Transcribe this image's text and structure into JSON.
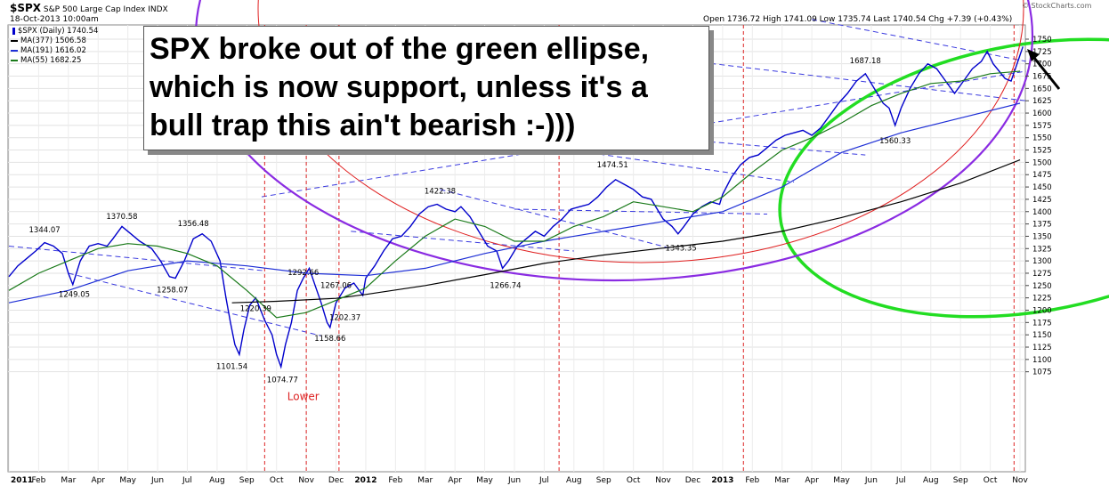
{
  "header": {
    "symbol": "$SPX",
    "name": "S&P 500 Large Cap Index",
    "exchange": "INDX",
    "datetime": "18-Oct-2013 10:00am",
    "watermark": "© StockCharts.com",
    "quote": {
      "open_label": "Open",
      "open": "1736.72",
      "high_label": "High",
      "high": "1741.09",
      "low_label": "Low",
      "low": "1735.74",
      "last_label": "Last",
      "last": "1740.54",
      "chg_label": "Chg",
      "chg": "+7.39 (+0.43%)"
    }
  },
  "legend": [
    {
      "label": "$SPX (Daily) 1740.54",
      "color": "#0000cc",
      "marker": "candle"
    },
    {
      "label": "MA(377) 1506.58",
      "color": "#000000",
      "marker": "line"
    },
    {
      "label": "MA(191) 1616.02",
      "color": "#1e2fd6",
      "marker": "line"
    },
    {
      "label": "MA(55) 1682.25",
      "color": "#1a7a1a",
      "marker": "line"
    }
  ],
  "callout": [
    "SPX broke out of the green ellipse,",
    "which is now support, unless it's a",
    "bull trap this ain't bearish :-)))"
  ],
  "chart_data": {
    "type": "line",
    "x_ticks": [
      "2011",
      "Feb",
      "Mar",
      "Apr",
      "May",
      "Jun",
      "Jul",
      "Aug",
      "Sep",
      "Oct",
      "Nov",
      "Dec",
      "2012",
      "Feb",
      "Mar",
      "Apr",
      "May",
      "Jun",
      "Jul",
      "Aug",
      "Sep",
      "Oct",
      "Nov",
      "Dec",
      "2013",
      "Feb",
      "Mar",
      "Apr",
      "May",
      "Jun",
      "Jul",
      "Aug",
      "Sep",
      "Oct",
      "Nov"
    ],
    "y_ticks": [
      1075,
      1100,
      1125,
      1150,
      1175,
      1200,
      1225,
      1250,
      1275,
      1300,
      1325,
      1350,
      1375,
      1400,
      1425,
      1450,
      1475,
      1500,
      1525,
      1550,
      1575,
      1600,
      1625,
      1650,
      1675,
      1700,
      1725,
      1750
    ],
    "ylim": [
      1060,
      1755
    ],
    "series": [
      {
        "name": "$SPX (Daily)",
        "color": "#0000cc",
        "points": [
          [
            0,
            1268
          ],
          [
            0.3,
            1290
          ],
          [
            0.6,
            1305
          ],
          [
            0.9,
            1320
          ],
          [
            1.2,
            1337
          ],
          [
            1.5,
            1330
          ],
          [
            1.8,
            1315
          ],
          [
            2.0,
            1275
          ],
          [
            2.15,
            1252
          ],
          [
            2.4,
            1300
          ],
          [
            2.7,
            1330
          ],
          [
            3.0,
            1335
          ],
          [
            3.3,
            1330
          ],
          [
            3.5,
            1345
          ],
          [
            3.8,
            1370
          ],
          [
            4.1,
            1355
          ],
          [
            4.4,
            1340
          ],
          [
            4.8,
            1325
          ],
          [
            5.1,
            1300
          ],
          [
            5.4,
            1268
          ],
          [
            5.6,
            1265
          ],
          [
            5.9,
            1300
          ],
          [
            6.2,
            1345
          ],
          [
            6.5,
            1355
          ],
          [
            6.8,
            1340
          ],
          [
            7.1,
            1300
          ],
          [
            7.3,
            1225
          ],
          [
            7.45,
            1175
          ],
          [
            7.6,
            1130
          ],
          [
            7.75,
            1110
          ],
          [
            7.9,
            1160
          ],
          [
            8.1,
            1210
          ],
          [
            8.3,
            1225
          ],
          [
            8.6,
            1180
          ],
          [
            8.85,
            1150
          ],
          [
            9.0,
            1110
          ],
          [
            9.15,
            1085
          ],
          [
            9.3,
            1130
          ],
          [
            9.5,
            1175
          ],
          [
            9.7,
            1240
          ],
          [
            9.9,
            1265
          ],
          [
            10.1,
            1285
          ],
          [
            10.3,
            1250
          ],
          [
            10.5,
            1215
          ],
          [
            10.7,
            1175
          ],
          [
            10.8,
            1165
          ],
          [
            11.0,
            1215
          ],
          [
            11.3,
            1245
          ],
          [
            11.6,
            1255
          ],
          [
            11.9,
            1230
          ],
          [
            12.0,
            1265
          ],
          [
            12.3,
            1290
          ],
          [
            12.6,
            1320
          ],
          [
            12.9,
            1345
          ],
          [
            13.2,
            1350
          ],
          [
            13.5,
            1370
          ],
          [
            13.8,
            1395
          ],
          [
            14.1,
            1410
          ],
          [
            14.4,
            1415
          ],
          [
            14.7,
            1405
          ],
          [
            15.0,
            1400
          ],
          [
            15.2,
            1410
          ],
          [
            15.5,
            1390
          ],
          [
            15.8,
            1360
          ],
          [
            16.1,
            1330
          ],
          [
            16.4,
            1320
          ],
          [
            16.6,
            1285
          ],
          [
            16.8,
            1300
          ],
          [
            17.1,
            1330
          ],
          [
            17.4,
            1345
          ],
          [
            17.7,
            1360
          ],
          [
            18.0,
            1350
          ],
          [
            18.3,
            1370
          ],
          [
            18.6,
            1385
          ],
          [
            18.9,
            1405
          ],
          [
            19.2,
            1410
          ],
          [
            19.5,
            1415
          ],
          [
            19.8,
            1430
          ],
          [
            20.1,
            1450
          ],
          [
            20.4,
            1465
          ],
          [
            20.7,
            1455
          ],
          [
            21.0,
            1445
          ],
          [
            21.3,
            1430
          ],
          [
            21.6,
            1425
          ],
          [
            21.8,
            1405
          ],
          [
            22.0,
            1385
          ],
          [
            22.3,
            1370
          ],
          [
            22.5,
            1355
          ],
          [
            22.7,
            1370
          ],
          [
            23.0,
            1395
          ],
          [
            23.3,
            1410
          ],
          [
            23.6,
            1420
          ],
          [
            23.9,
            1415
          ],
          [
            24.0,
            1435
          ],
          [
            24.3,
            1470
          ],
          [
            24.6,
            1495
          ],
          [
            24.9,
            1510
          ],
          [
            25.2,
            1515
          ],
          [
            25.5,
            1530
          ],
          [
            25.8,
            1545
          ],
          [
            26.1,
            1555
          ],
          [
            26.4,
            1560
          ],
          [
            26.7,
            1565
          ],
          [
            27.0,
            1555
          ],
          [
            27.3,
            1570
          ],
          [
            27.6,
            1595
          ],
          [
            27.9,
            1620
          ],
          [
            28.2,
            1640
          ],
          [
            28.5,
            1665
          ],
          [
            28.8,
            1680
          ],
          [
            29.0,
            1660
          ],
          [
            29.2,
            1640
          ],
          [
            29.4,
            1620
          ],
          [
            29.6,
            1610
          ],
          [
            29.8,
            1575
          ],
          [
            30.0,
            1610
          ],
          [
            30.3,
            1650
          ],
          [
            30.6,
            1680
          ],
          [
            30.9,
            1700
          ],
          [
            31.2,
            1690
          ],
          [
            31.5,
            1665
          ],
          [
            31.8,
            1640
          ],
          [
            32.1,
            1665
          ],
          [
            32.4,
            1690
          ],
          [
            32.7,
            1705
          ],
          [
            32.9,
            1725
          ],
          [
            33.1,
            1700
          ],
          [
            33.3,
            1685
          ],
          [
            33.5,
            1670
          ],
          [
            33.7,
            1665
          ],
          [
            33.9,
            1700
          ],
          [
            34.1,
            1735
          ]
        ]
      },
      {
        "name": "MA(377)",
        "color": "#000000",
        "points": [
          [
            7.5,
            1215
          ],
          [
            9,
            1218
          ],
          [
            11,
            1224
          ],
          [
            12,
            1232
          ],
          [
            14,
            1250
          ],
          [
            16,
            1272
          ],
          [
            18,
            1295
          ],
          [
            20,
            1312
          ],
          [
            22,
            1326
          ],
          [
            24,
            1340
          ],
          [
            26,
            1360
          ],
          [
            28,
            1388
          ],
          [
            30,
            1420
          ],
          [
            32,
            1458
          ],
          [
            34,
            1505
          ]
        ]
      },
      {
        "name": "MA(191)",
        "color": "#1e2fd6",
        "points": [
          [
            0,
            1215
          ],
          [
            2,
            1240
          ],
          [
            4,
            1280
          ],
          [
            6,
            1300
          ],
          [
            8,
            1290
          ],
          [
            10,
            1275
          ],
          [
            12,
            1270
          ],
          [
            14,
            1285
          ],
          [
            16,
            1315
          ],
          [
            18,
            1340
          ],
          [
            20,
            1360
          ],
          [
            22,
            1380
          ],
          [
            24,
            1400
          ],
          [
            26,
            1450
          ],
          [
            28,
            1520
          ],
          [
            30,
            1560
          ],
          [
            32,
            1590
          ],
          [
            34,
            1620
          ]
        ]
      },
      {
        "name": "MA(55)",
        "color": "#1a7a1a",
        "points": [
          [
            0,
            1240
          ],
          [
            1,
            1275
          ],
          [
            2,
            1300
          ],
          [
            3,
            1325
          ],
          [
            4,
            1335
          ],
          [
            5,
            1330
          ],
          [
            6,
            1315
          ],
          [
            7,
            1290
          ],
          [
            8,
            1240
          ],
          [
            9,
            1185
          ],
          [
            10,
            1195
          ],
          [
            11,
            1220
          ],
          [
            12,
            1245
          ],
          [
            13,
            1300
          ],
          [
            14,
            1350
          ],
          [
            15,
            1385
          ],
          [
            16,
            1370
          ],
          [
            17,
            1340
          ],
          [
            18,
            1340
          ],
          [
            19,
            1370
          ],
          [
            20,
            1390
          ],
          [
            21,
            1420
          ],
          [
            22,
            1410
          ],
          [
            23,
            1400
          ],
          [
            24,
            1430
          ],
          [
            25,
            1480
          ],
          [
            26,
            1525
          ],
          [
            27,
            1550
          ],
          [
            28,
            1580
          ],
          [
            29,
            1615
          ],
          [
            30,
            1640
          ],
          [
            31,
            1660
          ],
          [
            32,
            1665
          ],
          [
            33,
            1680
          ],
          [
            34,
            1685
          ]
        ]
      }
    ],
    "annotations": [
      {
        "text": "1344.07",
        "x": 1.2,
        "y": 1344
      },
      {
        "text": "1370.58",
        "x": 3.8,
        "y": 1371
      },
      {
        "text": "1356.48",
        "x": 6.2,
        "y": 1356
      },
      {
        "text": "1249.05",
        "x": 2.2,
        "y": 1249
      },
      {
        "text": "1258.07",
        "x": 5.5,
        "y": 1258
      },
      {
        "text": "1101.54",
        "x": 7.5,
        "y": 1102
      },
      {
        "text": "1220.39",
        "x": 8.3,
        "y": 1220
      },
      {
        "text": "1074.77",
        "x": 9.2,
        "y": 1075
      },
      {
        "text": "1292.66",
        "x": 9.9,
        "y": 1293
      },
      {
        "text": "1267.06",
        "x": 11.0,
        "y": 1267
      },
      {
        "text": "1158.66",
        "x": 10.8,
        "y": 1159
      },
      {
        "text": "1202.37",
        "x": 11.3,
        "y": 1202
      },
      {
        "text": "1422.38",
        "x": 14.5,
        "y": 1422
      },
      {
        "text": "1266.74",
        "x": 16.7,
        "y": 1267
      },
      {
        "text": "1474.51",
        "x": 20.3,
        "y": 1475
      },
      {
        "text": "1343.35",
        "x": 22.6,
        "y": 1343
      },
      {
        "text": "1687.18",
        "x": 28.8,
        "y": 1687
      },
      {
        "text": "1560.33",
        "x": 29.8,
        "y": 1560
      },
      {
        "text": "Lower",
        "x": 9.9,
        "y": 1075
      }
    ]
  }
}
